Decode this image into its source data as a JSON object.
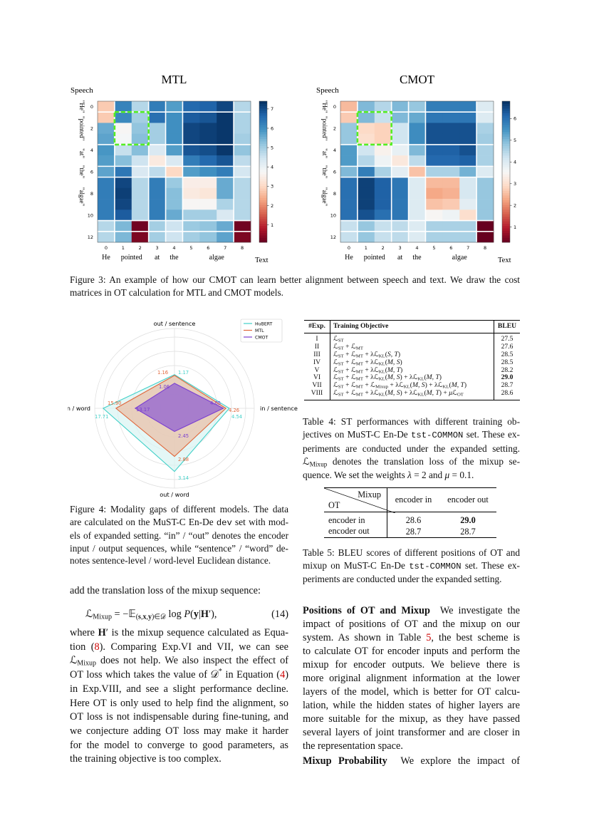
{
  "figure3": {
    "caption_lines": [
      "Figure 3: An example of how our CMOT can learn better alignment between speech and text. We draw the cost",
      "matrices in OT calculation for MTL and CMOT models."
    ]
  },
  "chart_data": [
    {
      "type": "heatmap",
      "title": "MTL",
      "ylabel": "Speech",
      "xlabel": "Text",
      "x_ticks": [
        "0",
        "1",
        "2",
        "3",
        "4",
        "5",
        "6",
        "7",
        "8"
      ],
      "y_ticks": [
        "0",
        "2",
        "4",
        "6",
        "8",
        "10",
        "12"
      ],
      "x_words": [
        "He",
        "pointed",
        "at",
        "the",
        "algae"
      ],
      "y_words": [
        "\"He\"",
        "\"pointed\"",
        "\"at\"",
        "\"the\"",
        "\"algae\""
      ],
      "colorbar_ticks": [
        "1",
        "2",
        "3",
        "4",
        "5",
        "6",
        "7"
      ],
      "colorbar_range": [
        0.1,
        7.4
      ],
      "highlight_box": {
        "rows": [
          1,
          3
        ],
        "cols": [
          1,
          2
        ],
        "color": "#55ee22"
      },
      "values": [
        [
          2.8,
          6.2,
          4.8,
          6.3,
          5.8,
          6.6,
          6.7,
          7.1,
          4.8
        ],
        [
          2.8,
          6.1,
          5.0,
          6.5,
          6.0,
          6.8,
          6.9,
          7.3,
          4.9
        ],
        [
          5.6,
          3.7,
          5.2,
          5.0,
          6.0,
          7.1,
          7.2,
          7.3,
          4.9
        ],
        [
          5.7,
          3.8,
          5.3,
          5.0,
          6.0,
          7.1,
          7.2,
          7.3,
          5.0
        ],
        [
          5.9,
          4.6,
          5.3,
          4.3,
          5.8,
          6.9,
          7.0,
          7.3,
          5.2
        ],
        [
          5.8,
          5.3,
          4.5,
          3.4,
          4.3,
          6.3,
          6.6,
          6.9,
          4.7
        ],
        [
          5.7,
          6.4,
          4.3,
          4.7,
          3.0,
          5.8,
          6.0,
          6.3,
          4.4
        ],
        [
          6.3,
          7.1,
          4.8,
          6.3,
          5.1,
          3.5,
          3.5,
          5.6,
          4.8
        ],
        [
          6.3,
          7.2,
          4.8,
          6.3,
          5.3,
          3.4,
          3.3,
          5.6,
          4.8
        ],
        [
          6.3,
          7.1,
          4.8,
          6.3,
          5.3,
          3.7,
          3.7,
          4.9,
          4.8
        ],
        [
          6.3,
          6.8,
          4.8,
          6.3,
          5.6,
          5.0,
          5.0,
          4.3,
          4.8
        ],
        [
          4.8,
          5.4,
          0.2,
          5.0,
          4.5,
          5.1,
          5.2,
          5.6,
          0.2
        ],
        [
          4.8,
          5.4,
          0.3,
          5.0,
          4.5,
          5.0,
          5.2,
          5.7,
          0.3
        ]
      ]
    },
    {
      "type": "heatmap",
      "title": "CMOT",
      "ylabel": "Speech",
      "xlabel": "Text",
      "x_ticks": [
        "0",
        "1",
        "2",
        "3",
        "4",
        "5",
        "6",
        "7",
        "8"
      ],
      "y_ticks": [
        "0",
        "2",
        "4",
        "6",
        "8",
        "10",
        "12"
      ],
      "x_words": [
        "He",
        "pointed",
        "at",
        "the",
        "algae"
      ],
      "y_words": [
        "\"He\"",
        "\"pointed\"",
        "\"at\"",
        "\"the\"",
        "\"algae\""
      ],
      "colorbar_ticks": [
        "1",
        "2",
        "3",
        "4",
        "5",
        "6"
      ],
      "colorbar_range": [
        0.3,
        6.8
      ],
      "highlight_box": {
        "rows": [
          1,
          3
        ],
        "cols": [
          1,
          2
        ],
        "color": "#55ee22"
      },
      "values": [
        [
          2.5,
          5.0,
          4.5,
          5.0,
          4.8,
          5.8,
          5.8,
          5.8,
          4.0
        ],
        [
          2.7,
          5.0,
          4.3,
          5.0,
          5.2,
          5.9,
          5.9,
          5.9,
          4.0
        ],
        [
          4.8,
          2.9,
          2.8,
          4.2,
          5.6,
          6.4,
          6.4,
          6.4,
          4.6
        ],
        [
          4.8,
          3.0,
          2.8,
          4.2,
          5.6,
          6.4,
          6.4,
          6.4,
          4.7
        ],
        [
          5.4,
          4.2,
          3.4,
          3.8,
          5.0,
          6.2,
          6.2,
          6.4,
          4.6
        ],
        [
          5.4,
          4.5,
          3.7,
          3.2,
          4.4,
          6.1,
          6.1,
          6.2,
          4.6
        ],
        [
          5.0,
          5.8,
          4.6,
          3.9,
          2.6,
          4.6,
          4.6,
          5.1,
          4.0
        ],
        [
          6.0,
          6.6,
          6.2,
          5.9,
          4.0,
          2.5,
          2.5,
          4.1,
          4.8
        ],
        [
          6.0,
          6.6,
          6.2,
          5.9,
          4.0,
          2.3,
          2.4,
          4.1,
          4.8
        ],
        [
          6.0,
          6.6,
          6.2,
          5.9,
          4.0,
          2.6,
          2.7,
          3.9,
          4.8
        ],
        [
          6.0,
          6.4,
          6.0,
          5.9,
          4.0,
          3.5,
          3.7,
          3.0,
          4.8
        ],
        [
          4.3,
          4.8,
          4.3,
          4.4,
          4.0,
          4.6,
          4.6,
          4.6,
          0.3
        ],
        [
          4.3,
          4.8,
          4.3,
          4.4,
          4.0,
          4.6,
          4.6,
          4.6,
          0.3
        ]
      ]
    },
    {
      "type": "radar",
      "axes": [
        "out / sentence",
        "in / sentence",
        "out / word",
        "in / word"
      ],
      "axis_ranges": [
        [
          0.74,
          1.65
        ],
        [
          0,
          5.9
        ],
        [
          2.05,
          3.28
        ],
        [
          7.6,
          17.7
        ]
      ],
      "legend_position": "top-right",
      "series": [
        {
          "name": "HuBERT",
          "color": "#40d0c8",
          "fill": "#d8f4f2",
          "values": [
            1.17,
            4.54,
            3.14,
            17.71
          ]
        },
        {
          "name": "MTL",
          "color": "#e0663a",
          "fill": "#e9bda5",
          "values": [
            1.16,
            4.26,
            2.88,
            15.9
          ]
        },
        {
          "name": "CMOT",
          "color": "#7a3fd0",
          "fill": "#9b6fcf",
          "values": [
            1.06,
            4.05,
            2.45,
            13.17
          ]
        }
      ]
    }
  ],
  "figure4": {
    "caption_lines": [
      "Figure 4: Modality gaps of different models. The data",
      "are calculated on the MuST-C En-De <span class=\"mono\">dev</span> set with mod-",
      "els of expanded setting. “in” / “out” denotes the encoder",
      "input / output sequences, while “sentence” / “word” de-",
      "notes sentence-level / word-level Euclidean distance."
    ]
  },
  "table4": {
    "headers": [
      "#Exp.",
      "Training Objective",
      "BLEU"
    ],
    "rows": [
      {
        "exp": "I",
        "objective": "ℒ<sub>ST</sub>",
        "bleu": "27.5"
      },
      {
        "exp": "II",
        "objective": "ℒ<sub>ST</sub> + ℒ<sub>MT</sub>",
        "bleu": "27.6"
      },
      {
        "exp": "III",
        "objective": "ℒ<sub>ST</sub> + ℒ<sub>MT</sub> + λℒ<sub>KL</sub>(<i>S, T</i>)",
        "bleu": "28.5"
      },
      {
        "exp": "IV",
        "objective": "ℒ<sub>ST</sub> + ℒ<sub>MT</sub> + λℒ<sub>KL</sub>(<i>M, S</i>)",
        "bleu": "28.5"
      },
      {
        "exp": "V",
        "objective": "ℒ<sub>ST</sub> + ℒ<sub>MT</sub> + λℒ<sub>KL</sub>(<i>M, T</i>)",
        "bleu": "28.2"
      },
      {
        "exp": "VI",
        "objective": "ℒ<sub>ST</sub> + ℒ<sub>MT</sub> + λℒ<sub>KL</sub>(<i>M, S</i>) + λℒ<sub>KL</sub>(<i>M, T</i>)",
        "bleu": "29.0",
        "best": true
      },
      {
        "exp": "VII",
        "objective": "ℒ<sub>ST</sub> + ℒ<sub>MT</sub> + ℒ<sub>Mixup</sub> + λℒ<sub>KL</sub>(<i>M, S</i>) + λℒ<sub>KL</sub>(<i>M, T</i>)",
        "bleu": "28.7"
      },
      {
        "exp": "VIII",
        "objective": "ℒ<sub>ST</sub> + ℒ<sub>MT</sub> + λℒ<sub>KL</sub>(<i>M, S</i>) + λℒ<sub>KL</sub>(<i>M, T</i>) + <i>μ</i>ℒ<sub>OT</sub>",
        "bleu": "28.6"
      }
    ],
    "caption_lines": [
      "Table 4: ST performances with different training ob-",
      "jectives on MuST-C En-De <span class=\"mono\">tst-COMMON</span> set. These ex-",
      "periments are conducted under the expanded setting.",
      "ℒ<sub>Mixup</sub> denotes the translation loss of the mixup se-",
      "quence. We set the weights <i>λ</i> = 2 and <i>μ</i> = 0.1."
    ]
  },
  "table5": {
    "corner_top": "Mixup",
    "corner_bottom": "OT",
    "col_headers": [
      "encoder in",
      "encoder out"
    ],
    "rows": [
      {
        "label": "encoder in",
        "values": [
          "28.6",
          "29.0"
        ],
        "best_index": 1
      },
      {
        "label": "encoder out",
        "values": [
          "28.7",
          "28.7"
        ]
      }
    ],
    "caption_lines": [
      "Table 5: BLEU scores of different positions of OT and",
      "mixup on MuST-C En-De <span class=\"mono\">tst-COMMON</span> set. These ex-",
      "periments are conducted under the expanded setting."
    ]
  },
  "left_body": {
    "intro": "add the translation loss of the mixup sequence:",
    "equation": "ℒ<sub>Mixup</sub> = −𝔼<sub>(<b>s</b>,<b>x</b>,<b>y</b>)∈𝒟</sub> log <i>P</i>(<b>y</b>|<b>H</b>′),",
    "equation_number": "(14)",
    "lines": [
      "where <b>H</b>′ is the mixup sequence calculated as Equa-",
      "tion (<a>8</a>). Comparing Exp.VI and VII, we can see",
      "ℒ<sub>Mixup</sub> does not help. We also inspect the effect of",
      "OT loss which takes the value of 𝒟<sup>*</sup> in Equation (<a>4</a>)",
      "in Exp.VIII, and see a slight performance decline.",
      "Here OT is only used to help find the alignment, so",
      "OT loss is not indispensable during fine-tuning, and",
      "we conjecture adding OT loss may make it harder",
      "for the model to converge to good parameters, as",
      "the training objective is too complex."
    ]
  },
  "right_body": {
    "lines": [
      "<b>Positions of OT and Mixup</b>&nbsp; We investigate the",
      "impact of positions of OT and the mixup on our",
      "system. As shown in Table <a>5</a>, the best scheme is",
      "to calculate OT for encoder inputs and perform the",
      "mixup for encoder outputs. We believe there is",
      "more original alignment information at the lower",
      "layers of the model, which is better for OT calcu-",
      "lation, while the hidden states of higher layers are",
      "more suitable for the mixup, as they have passed",
      "several layers of joint transformer and are closer in",
      "the representation space."
    ],
    "next_heading_line": "<b>Mixup Probability</b>&nbsp; We explore the impact of"
  }
}
